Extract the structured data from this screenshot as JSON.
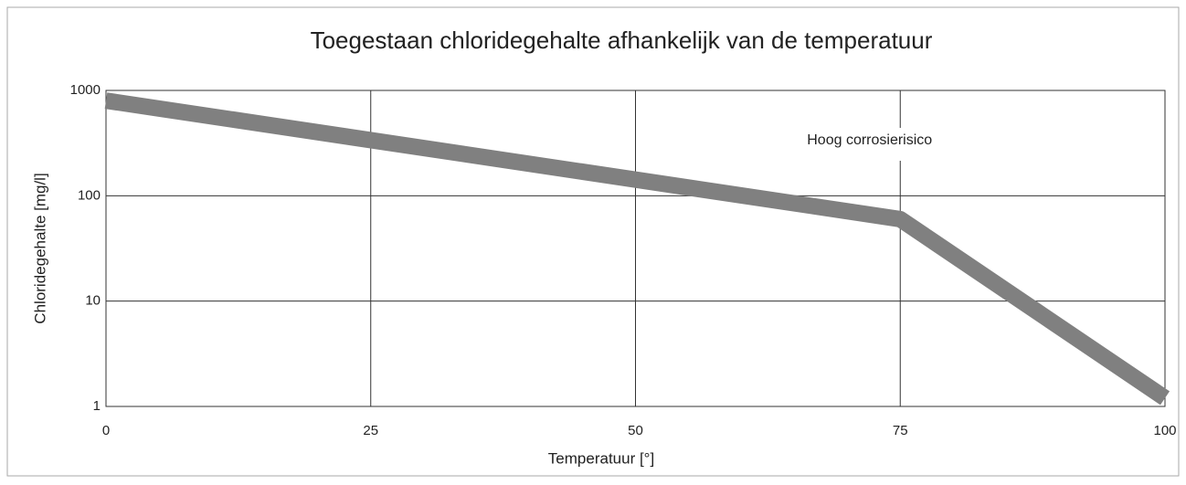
{
  "chart_data": {
    "type": "line",
    "title": "Toegestaan chloridegehalte afhankelijk van de temperatuur",
    "x_label": "Temperatuur [°]",
    "y_label": "Chloridegehalte [mg/l]",
    "annotation": "Hoog corrosierisico",
    "x": [
      0,
      75,
      100
    ],
    "series": [
      {
        "color": "#808080",
        "values": [
          800,
          60,
          1.2
        ]
      }
    ],
    "xlim": [
      0,
      100
    ],
    "xticks": [
      0,
      25,
      50,
      75,
      100
    ],
    "ylim": [
      1,
      1000
    ],
    "yticks": [
      1,
      10,
      100,
      1000
    ],
    "ylog": true,
    "grid": true
  }
}
